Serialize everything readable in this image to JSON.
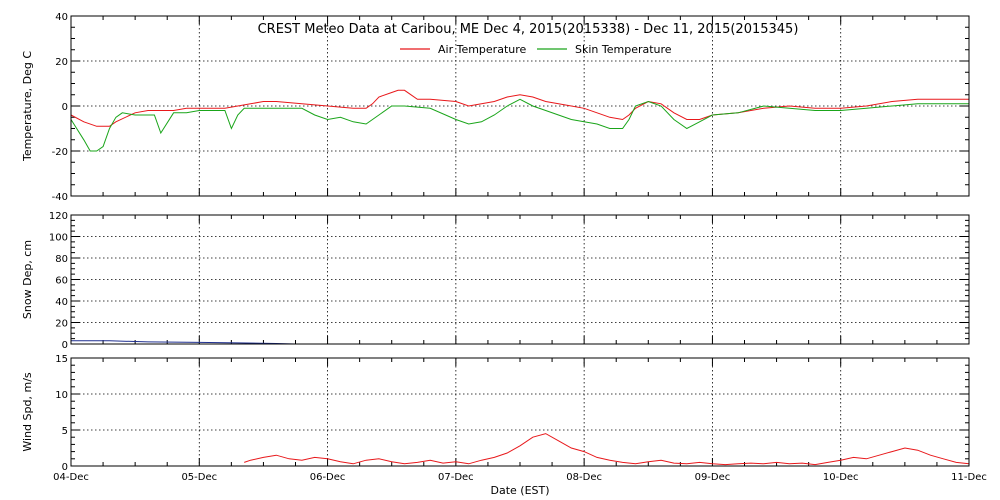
{
  "chart_data": [
    {
      "type": "line",
      "title": "CREST Meteo Data at Caribou, ME   Dec  4, 2015(2015338) - Dec 11, 2015(2015345)",
      "xlabel": "",
      "ylabel": "Temperature, Deg C",
      "ylim": [
        -40,
        40
      ],
      "yticks": [
        -40,
        -20,
        0,
        20,
        40
      ],
      "xlim": [
        0,
        7
      ],
      "grid": true,
      "legend": "top-center",
      "series": [
        {
          "name": "Air Temperature",
          "color": "#e8181b",
          "x": [
            0,
            0.1,
            0.2,
            0.3,
            0.35,
            0.5,
            0.6,
            0.7,
            0.8,
            0.9,
            1.0,
            1.1,
            1.2,
            1.3,
            1.4,
            1.5,
            1.6,
            1.8,
            2.0,
            2.2,
            2.3,
            2.35,
            2.4,
            2.5,
            2.55,
            2.6,
            2.65,
            2.7,
            2.8,
            3.0,
            3.1,
            3.2,
            3.3,
            3.4,
            3.5,
            3.6,
            3.7,
            3.8,
            3.9,
            4.0,
            4.1,
            4.2,
            4.3,
            4.35,
            4.4,
            4.5,
            4.6,
            4.7,
            4.8,
            4.9,
            5.0,
            5.2,
            5.4,
            5.6,
            5.8,
            6.0,
            6.2,
            6.4,
            6.6,
            6.8,
            7.0
          ],
          "values": [
            -4,
            -7,
            -9,
            -9,
            -7,
            -3,
            -2,
            -2,
            -2,
            -1,
            -1,
            -1,
            -1,
            0,
            1,
            2,
            2,
            1,
            0,
            -1,
            -1,
            1,
            4,
            6,
            7,
            7,
            5,
            3,
            3,
            2,
            0,
            1,
            2,
            4,
            5,
            4,
            2,
            1,
            0,
            -1,
            -3,
            -5,
            -6,
            -4,
            -1,
            2,
            1,
            -3,
            -6,
            -6,
            -4,
            -3,
            -1,
            0,
            -1,
            -1,
            0,
            2,
            3,
            3,
            3
          ]
        },
        {
          "name": "Skin Temperature",
          "color": "#1aa51a",
          "x": [
            0,
            0.1,
            0.15,
            0.2,
            0.25,
            0.3,
            0.35,
            0.4,
            0.5,
            0.65,
            0.7,
            0.8,
            0.9,
            1.0,
            1.2,
            1.25,
            1.3,
            1.35,
            1.4,
            1.6,
            1.8,
            1.9,
            2.0,
            2.1,
            2.2,
            2.3,
            2.4,
            2.5,
            2.6,
            2.8,
            3.0,
            3.1,
            3.2,
            3.3,
            3.4,
            3.5,
            3.6,
            3.7,
            3.8,
            3.9,
            4.0,
            4.1,
            4.2,
            4.3,
            4.35,
            4.4,
            4.5,
            4.6,
            4.7,
            4.8,
            4.9,
            5.0,
            5.2,
            5.4,
            5.6,
            5.8,
            6.0,
            6.2,
            6.4,
            6.6,
            6.8,
            7.0
          ],
          "values": [
            -6,
            -15,
            -20,
            -20,
            -18,
            -10,
            -5,
            -3,
            -4,
            -4,
            -12,
            -3,
            -3,
            -2,
            -2,
            -10,
            -4,
            -1,
            -1,
            -1,
            -1,
            -4,
            -6,
            -5,
            -7,
            -8,
            -4,
            0,
            0,
            -1,
            -6,
            -8,
            -7,
            -4,
            0,
            3,
            0,
            -2,
            -4,
            -6,
            -7,
            -8,
            -10,
            -10,
            -6,
            0,
            2,
            0,
            -6,
            -10,
            -7,
            -4,
            -3,
            0,
            -1,
            -2,
            -2,
            -1,
            0,
            1,
            1,
            1
          ]
        }
      ]
    },
    {
      "type": "line",
      "title": "",
      "xlabel": "",
      "ylabel": "Snow Dep, cm",
      "ylim": [
        0,
        120
      ],
      "yticks": [
        0,
        20,
        40,
        60,
        80,
        100,
        120
      ],
      "xlim": [
        0,
        7
      ],
      "grid": true,
      "series": [
        {
          "name": "",
          "color": "#1f2f8f",
          "x": [
            0,
            0.3,
            0.6,
            1.0,
            1.3,
            1.6,
            1.75
          ],
          "values": [
            3,
            3,
            2,
            1.5,
            1,
            0.5,
            0
          ]
        }
      ]
    },
    {
      "type": "line",
      "title": "",
      "xlabel": "Date (EST)",
      "ylabel": "Wind Spd, m/s",
      "ylim": [
        0,
        15
      ],
      "yticks": [
        0,
        5,
        10,
        15
      ],
      "xlim": [
        0,
        7
      ],
      "grid": true,
      "xticklabels": [
        "04-Dec",
        "05-Dec",
        "06-Dec",
        "07-Dec",
        "08-Dec",
        "09-Dec",
        "10-Dec",
        "11-Dec"
      ],
      "series": [
        {
          "name": "",
          "color": "#e8181b",
          "x": [
            1.35,
            1.4,
            1.5,
            1.6,
            1.7,
            1.8,
            1.9,
            2.0,
            2.1,
            2.2,
            2.3,
            2.4,
            2.5,
            2.6,
            2.7,
            2.8,
            2.9,
            3.0,
            3.1,
            3.2,
            3.3,
            3.4,
            3.5,
            3.6,
            3.7,
            3.8,
            3.9,
            4.0,
            4.1,
            4.2,
            4.3,
            4.4,
            4.5,
            4.6,
            4.7,
            4.8,
            4.9,
            5.0,
            5.1,
            5.2,
            5.3,
            5.4,
            5.5,
            5.6,
            5.7,
            5.8,
            5.9,
            6.0,
            6.1,
            6.2,
            6.3,
            6.4,
            6.5,
            6.6,
            6.7,
            6.8,
            6.9,
            7.0
          ],
          "values": [
            0.5,
            0.8,
            1.2,
            1.5,
            1.0,
            0.8,
            1.2,
            1.0,
            0.6,
            0.3,
            0.8,
            1.0,
            0.6,
            0.3,
            0.5,
            0.8,
            0.4,
            0.6,
            0.3,
            0.8,
            1.2,
            1.8,
            2.8,
            4.0,
            4.5,
            3.5,
            2.5,
            2.0,
            1.2,
            0.8,
            0.5,
            0.3,
            0.6,
            0.8,
            0.4,
            0.3,
            0.5,
            0.3,
            0.2,
            0.3,
            0.4,
            0.3,
            0.5,
            0.3,
            0.4,
            0.2,
            0.5,
            0.8,
            1.2,
            1.0,
            1.5,
            2.0,
            2.5,
            2.2,
            1.5,
            1.0,
            0.5,
            0.3
          ]
        }
      ]
    }
  ]
}
